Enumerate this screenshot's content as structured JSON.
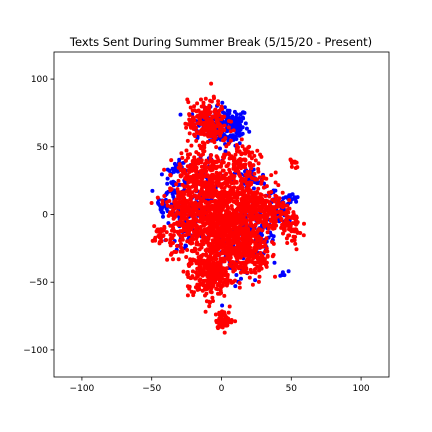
{
  "chart_data": {
    "type": "scatter",
    "title": "Texts Sent During Summer Break (5/15/20 - Present)",
    "xlabel": "",
    "ylabel": "",
    "xlim": [
      -120,
      120
    ],
    "ylim": [
      -120,
      120
    ],
    "xticks": [
      -100,
      -50,
      0,
      50,
      100
    ],
    "yticks": [
      -100,
      -50,
      0,
      50,
      100
    ],
    "xtick_labels": [
      "−100",
      "−50",
      "0",
      "50",
      "100"
    ],
    "ytick_labels": [
      "−100",
      "−50",
      "0",
      "50",
      "100"
    ],
    "grid": false,
    "series": [
      {
        "color": "#0000ff",
        "clusters": [
          {
            "cx": 5,
            "cy": 65,
            "sx": 7,
            "sy": 7,
            "n": 160
          },
          {
            "cx": -12,
            "cy": 68,
            "sx": 5,
            "sy": 5,
            "n": 50
          },
          {
            "cx": -35,
            "cy": 15,
            "sx": 5,
            "sy": 10,
            "n": 60
          },
          {
            "cx": -42,
            "cy": 5,
            "sx": 2,
            "sy": 3,
            "n": 15
          },
          {
            "cx": 20,
            "cy": -10,
            "sx": 8,
            "sy": 10,
            "n": 90
          },
          {
            "cx": 40,
            "cy": 5,
            "sx": 6,
            "sy": 6,
            "n": 50
          },
          {
            "cx": 50,
            "cy": 10,
            "sx": 3,
            "sy": 2,
            "n": 15
          },
          {
            "cx": -10,
            "cy": 20,
            "sx": 8,
            "sy": 15,
            "n": 80
          },
          {
            "cx": 5,
            "cy": -35,
            "sx": 8,
            "sy": 8,
            "n": 50
          },
          {
            "cx": 44,
            "cy": -44,
            "sx": 2,
            "sy": 1,
            "n": 6
          },
          {
            "cx": 20,
            "cy": 25,
            "sx": 6,
            "sy": 5,
            "n": 40
          },
          {
            "cx": -25,
            "cy": -10,
            "sx": 5,
            "sy": 10,
            "n": 40
          },
          {
            "cx": 30,
            "cy": -20,
            "sx": 5,
            "sy": 5,
            "n": 30
          },
          {
            "cx": -32,
            "cy": 35,
            "sx": 3,
            "sy": 3,
            "n": 15
          }
        ]
      },
      {
        "color": "#ff0000",
        "clusters": [
          {
            "cx": -5,
            "cy": 5,
            "sx": 12,
            "sy": 22,
            "n": 900
          },
          {
            "cx": 10,
            "cy": -20,
            "sx": 10,
            "sy": 12,
            "n": 400
          },
          {
            "cx": -10,
            "cy": -45,
            "sx": 7,
            "sy": 9,
            "n": 220
          },
          {
            "cx": -10,
            "cy": 68,
            "sx": 7,
            "sy": 8,
            "n": 220
          },
          {
            "cx": 2,
            "cy": -78,
            "sx": 3,
            "sy": 3,
            "n": 70
          },
          {
            "cx": -28,
            "cy": 0,
            "sx": 6,
            "sy": 14,
            "n": 200
          },
          {
            "cx": 35,
            "cy": 0,
            "sx": 7,
            "sy": 8,
            "n": 160
          },
          {
            "cx": 50,
            "cy": -10,
            "sx": 4,
            "sy": 8,
            "n": 60
          },
          {
            "cx": 52,
            "cy": 38,
            "sx": 1.5,
            "sy": 2,
            "n": 15
          },
          {
            "cx": -45,
            "cy": -15,
            "sx": 3,
            "sy": 3,
            "n": 30
          },
          {
            "cx": 20,
            "cy": 10,
            "sx": 8,
            "sy": 10,
            "n": 200
          },
          {
            "cx": 15,
            "cy": 40,
            "sx": 6,
            "sy": 5,
            "n": 60
          },
          {
            "cx": -20,
            "cy": 30,
            "sx": 5,
            "sy": 8,
            "n": 80
          },
          {
            "cx": 25,
            "cy": -35,
            "sx": 6,
            "sy": 6,
            "n": 80
          }
        ]
      }
    ]
  }
}
